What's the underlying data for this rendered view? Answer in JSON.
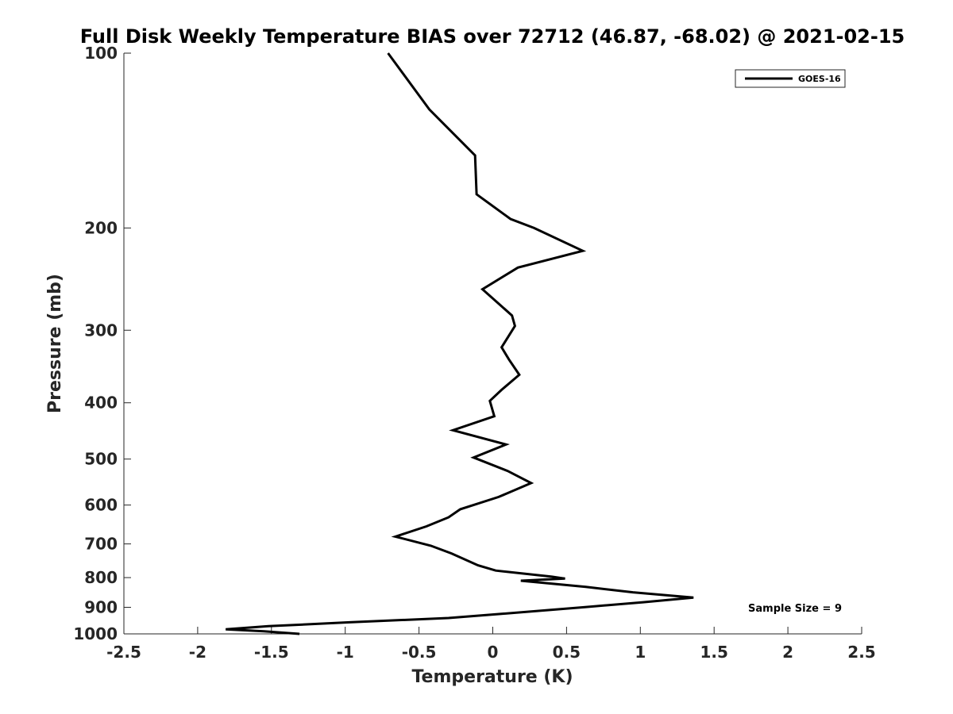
{
  "chart_data": {
    "type": "line",
    "title": "Full Disk Weekly Temperature BIAS over 72712 (46.87, -68.02) @ 2021-02-15",
    "xlabel": "Temperature (K)",
    "ylabel": "Pressure (mb)",
    "xlim": [
      -2.5,
      2.5
    ],
    "ylim": [
      1000,
      100
    ],
    "y_scale": "log",
    "y_reversed": true,
    "grid": false,
    "legend_position": "top-right",
    "x_ticks": [
      -2.5,
      -2,
      -1.5,
      -1,
      -0.5,
      0,
      0.5,
      1,
      1.5,
      2,
      2.5
    ],
    "x_tick_labels": [
      "-2.5",
      "-2",
      "-1.5",
      "-1",
      "-0.5",
      "0",
      "0.5",
      "1",
      "1.5",
      "2",
      "2.5"
    ],
    "y_ticks": [
      100,
      200,
      300,
      400,
      500,
      600,
      700,
      800,
      900,
      1000
    ],
    "y_tick_labels": [
      "100",
      "200",
      "300",
      "400",
      "500",
      "600",
      "700",
      "800",
      "900",
      "1000"
    ],
    "series": [
      {
        "name": "GOES-16",
        "color": "#000000",
        "points": [
          [
            -0.71,
            100
          ],
          [
            -0.43,
            125
          ],
          [
            -0.12,
            150
          ],
          [
            -0.11,
            175
          ],
          [
            0.12,
            193
          ],
          [
            0.28,
            200
          ],
          [
            0.61,
            219
          ],
          [
            0.17,
            234
          ],
          [
            -0.07,
            255
          ],
          [
            0.13,
            283
          ],
          [
            0.15,
            295
          ],
          [
            0.06,
            321
          ],
          [
            0.11,
            337
          ],
          [
            0.18,
            358
          ],
          [
            0.06,
            380
          ],
          [
            -0.02,
            397
          ],
          [
            0.01,
            422
          ],
          [
            -0.27,
            446
          ],
          [
            0.09,
            472
          ],
          [
            -0.13,
            497
          ],
          [
            0.1,
            524
          ],
          [
            0.26,
            550
          ],
          [
            0.04,
            581
          ],
          [
            -0.22,
            610
          ],
          [
            -0.3,
            630
          ],
          [
            -0.45,
            653
          ],
          [
            -0.66,
            680
          ],
          [
            -0.42,
            705
          ],
          [
            -0.28,
            727
          ],
          [
            -0.1,
            762
          ],
          [
            0.02,
            778
          ],
          [
            0.4,
            797
          ],
          [
            0.49,
            803
          ],
          [
            0.19,
            810
          ],
          [
            0.63,
            830
          ],
          [
            0.95,
            848
          ],
          [
            1.36,
            866
          ],
          [
            1.02,
            882
          ],
          [
            0.61,
            900
          ],
          [
            0.05,
            924
          ],
          [
            -0.3,
            939
          ],
          [
            -0.97,
            955
          ],
          [
            -1.52,
            970
          ],
          [
            -1.81,
            982
          ],
          [
            -1.55,
            990
          ],
          [
            -1.31,
            1000
          ]
        ]
      }
    ],
    "annotations": [
      "Sample Size = 9"
    ]
  }
}
